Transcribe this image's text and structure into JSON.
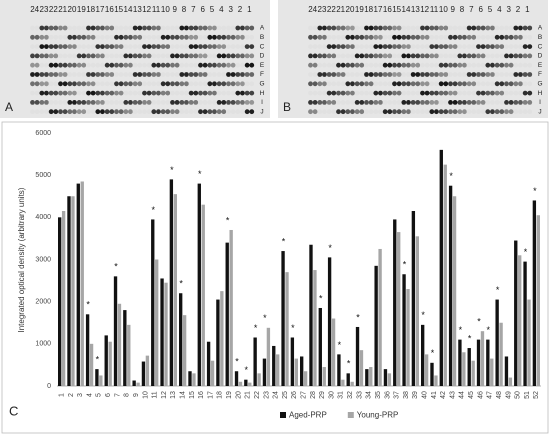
{
  "panels": [
    {
      "label": "A",
      "columns": [
        "24",
        "23",
        "22",
        "21",
        "20",
        "19",
        "18",
        "17",
        "16",
        "15",
        "14",
        "13",
        "12",
        "11",
        "10",
        "9",
        "8",
        "7",
        "6",
        "5",
        "4",
        "3",
        "2",
        "1"
      ],
      "rows": [
        "A",
        "B",
        "C",
        "D",
        "E",
        "F",
        "G",
        "H",
        "I",
        "J"
      ]
    },
    {
      "label": "B",
      "columns": [
        "24",
        "23",
        "22",
        "21",
        "20",
        "19",
        "18",
        "17",
        "16",
        "15",
        "14",
        "13",
        "12",
        "11",
        "10",
        "9",
        "8",
        "7",
        "6",
        "5",
        "4",
        "3",
        "2",
        "1"
      ],
      "rows": [
        "A",
        "B",
        "C",
        "D",
        "E",
        "F",
        "G",
        "H",
        "I",
        "J"
      ]
    }
  ],
  "chart_data": {
    "type": "bar",
    "label": "C",
    "y_label": "Integrated optical density (arbitrary units)",
    "categories": [
      "1",
      "2",
      "3",
      "4",
      "5",
      "6",
      "7",
      "8",
      "9",
      "10",
      "11",
      "12",
      "13",
      "14",
      "15",
      "16",
      "17",
      "18",
      "19",
      "20",
      "21",
      "22",
      "23",
      "24",
      "25",
      "26",
      "27",
      "28",
      "29",
      "30",
      "31",
      "32",
      "33",
      "34",
      "35",
      "36",
      "37",
      "38",
      "39",
      "40",
      "41",
      "42",
      "43",
      "44",
      "45",
      "46",
      "47",
      "48",
      "49",
      "50",
      "51",
      "52"
    ],
    "series": [
      {
        "name": "Aged-PRP",
        "color": "#111111",
        "values": [
          4000,
          4500,
          4800,
          1700,
          400,
          1200,
          2600,
          1800,
          130,
          580,
          3950,
          2550,
          4900,
          2200,
          350,
          4800,
          1050,
          2050,
          3400,
          350,
          150,
          1150,
          650,
          950,
          3200,
          1150,
          700,
          3350,
          1850,
          3050,
          750,
          300,
          1400,
          400,
          2850,
          400,
          3950,
          2650,
          4150,
          1450,
          550,
          5600,
          4750,
          1100,
          900,
          1100,
          1100,
          2050,
          700,
          3450,
          2950,
          4400
        ]
      },
      {
        "name": "Young-PRP",
        "color": "#a6a6a6",
        "values": [
          4150,
          4500,
          4850,
          1000,
          250,
          1050,
          1950,
          1450,
          80,
          720,
          3000,
          2450,
          4550,
          1680,
          300,
          4300,
          600,
          2250,
          3700,
          100,
          80,
          300,
          1380,
          750,
          2700,
          650,
          350,
          2750,
          450,
          1600,
          150,
          100,
          850,
          450,
          3250,
          300,
          3650,
          2300,
          3550,
          750,
          250,
          5250,
          4500,
          800,
          600,
          1300,
          650,
          1500,
          200,
          3100,
          2050,
          4050
        ]
      }
    ],
    "significance": [
      null,
      null,
      null,
      "*",
      "*",
      null,
      "*",
      null,
      null,
      null,
      "*",
      null,
      "*",
      "*",
      null,
      "*",
      null,
      null,
      "*",
      "*",
      "*",
      "*",
      "*",
      null,
      "*",
      "*",
      null,
      null,
      "*",
      "*",
      "*",
      "*",
      "*",
      null,
      null,
      null,
      null,
      "*",
      null,
      "*",
      "*",
      null,
      "*",
      "*",
      "*",
      "*",
      "*",
      "*",
      null,
      null,
      "*",
      "*"
    ],
    "ylim": [
      0,
      6000
    ],
    "yticks": [
      0,
      1000,
      2000,
      3000,
      4000,
      5000,
      6000
    ],
    "grid": false,
    "legend": "bottom"
  }
}
